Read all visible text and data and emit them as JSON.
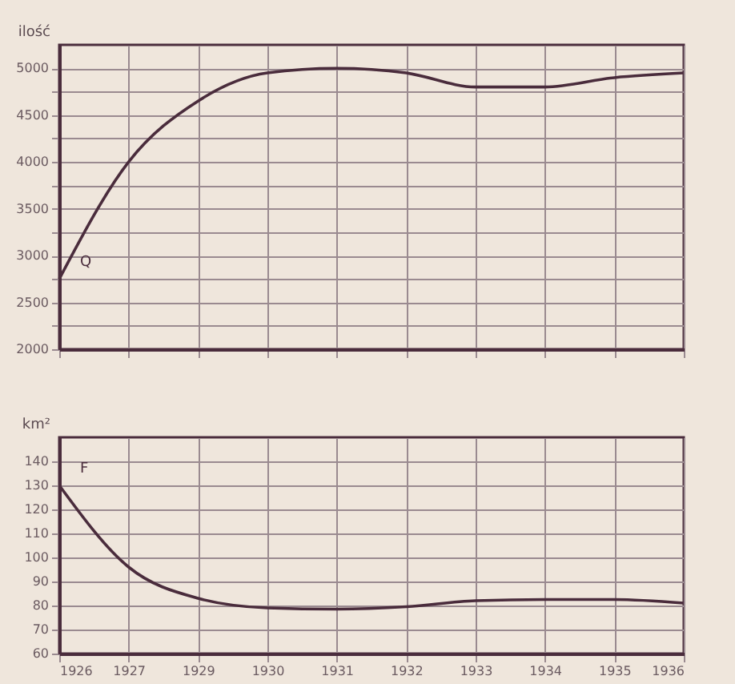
{
  "chart_data": [
    {
      "type": "line",
      "ylabel": "ilość",
      "categories": [
        "1926",
        "1927",
        "1929",
        "1930",
        "1931",
        "1932",
        "1933",
        "1934",
        "1935",
        "1936"
      ],
      "series": [
        {
          "color": "#4a2c3c",
          "values": [
            2750,
            4000,
            4650,
            4950,
            5000,
            4950,
            4800,
            4800,
            4900,
            4950
          ]
        }
      ],
      "ylim": [
        2000,
        5250
      ],
      "yticks": [
        2000,
        {
          "value": 2250,
          "label": null
        },
        2500,
        {
          "value": 2750,
          "label": null
        },
        3000,
        {
          "value": 3250,
          "label": null
        },
        3500,
        {
          "value": 3750,
          "label": null
        },
        4000,
        {
          "value": 4250,
          "label": null
        },
        4500,
        {
          "value": 4750,
          "label": null
        },
        5000
      ],
      "grid": true,
      "tick_labels": "y",
      "annotations": [
        "Q"
      ]
    },
    {
      "type": "line",
      "ylabel": "km²",
      "categories": [
        "1926",
        "1927",
        "1929",
        "1930",
        "1931",
        "1932",
        "1933",
        "1934",
        "1935",
        "1936"
      ],
      "series": [
        {
          "color": "#4a2c3c",
          "values": [
            130,
            96,
            83,
            79,
            78.5,
            79.5,
            82,
            82.5,
            82.5,
            81
          ]
        }
      ],
      "ylim": [
        60,
        150
      ],
      "yticks": [
        60,
        70,
        80,
        90,
        100,
        110,
        120,
        130,
        140
      ],
      "grid": true,
      "annotations": [
        "F"
      ]
    }
  ]
}
